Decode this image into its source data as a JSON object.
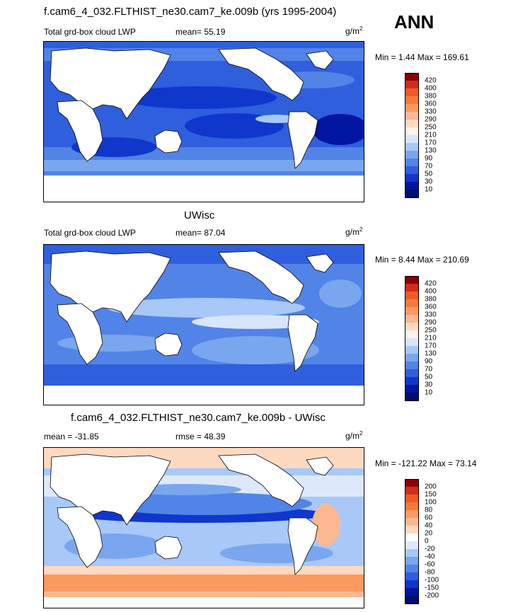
{
  "header": {
    "title": "f.cam6_4_032.FLTHIST_ne30.cam7_ke.009b (yrs 1995-2004)",
    "season": "ANN"
  },
  "panels": [
    {
      "id": "model",
      "left_label": "Total grd-box cloud LWP",
      "center_label": "mean=  55.19",
      "units_base": "g/m",
      "units_exp": "2",
      "minmax": "Min =   1.44 Max = 169.61",
      "colorbar": {
        "labels": [
          "420",
          "400",
          "380",
          "360",
          "330",
          "290",
          "250",
          "210",
          "170",
          "130",
          "90",
          "70",
          "50",
          "30",
          "10"
        ],
        "colors": [
          "#8b0000",
          "#d42c1a",
          "#ee5a27",
          "#f77a39",
          "#fb9a60",
          "#fcb890",
          "#fdd9c0",
          "#fff2e6",
          "#d7e6fb",
          "#a8c8f7",
          "#7aa6ef",
          "#5283e7",
          "#2f5fdc",
          "#1037cc",
          "#0015a0",
          "#000e6e"
        ]
      }
    },
    {
      "id": "obs",
      "title": "UWisc",
      "left_label": "Total grd-box cloud LWP",
      "center_label": "mean=  87.04",
      "units_base": "g/m",
      "units_exp": "2",
      "minmax": "Min =   8.44 Max = 210.69",
      "colorbar": {
        "labels": [
          "420",
          "400",
          "380",
          "360",
          "330",
          "290",
          "250",
          "210",
          "170",
          "130",
          "90",
          "70",
          "50",
          "30",
          "10"
        ],
        "colors": [
          "#8b0000",
          "#d42c1a",
          "#ee5a27",
          "#f77a39",
          "#fb9a60",
          "#fcb890",
          "#fdd9c0",
          "#fff2e6",
          "#d7e6fb",
          "#a8c8f7",
          "#7aa6ef",
          "#5283e7",
          "#2f5fdc",
          "#1037cc",
          "#0015a0",
          "#000e6e"
        ]
      }
    },
    {
      "id": "diff",
      "title": "f.cam6_4_032.FLTHIST_ne30.cam7_ke.009b - UWisc",
      "left_label": "mean = -31.85",
      "center_label": "rmse =  48.39",
      "units_base": "g/m",
      "units_exp": "2",
      "minmax": "Min = -121.22 Max =  73.14",
      "colorbar": {
        "labels": [
          "200",
          "150",
          "100",
          "80",
          "60",
          "40",
          "20",
          "0",
          "-20",
          "-40",
          "-60",
          "-80",
          "-100",
          "-150",
          "-200"
        ],
        "colors": [
          "#8b0000",
          "#d42c1a",
          "#ee5a27",
          "#f77a39",
          "#fb9a60",
          "#fcb890",
          "#fdd9c0",
          "#ffffff",
          "#dde9fb",
          "#a8c8f7",
          "#7aa6ef",
          "#5283e7",
          "#2f5fdc",
          "#1037cc",
          "#0015a0",
          "#000e6e"
        ]
      }
    }
  ]
}
